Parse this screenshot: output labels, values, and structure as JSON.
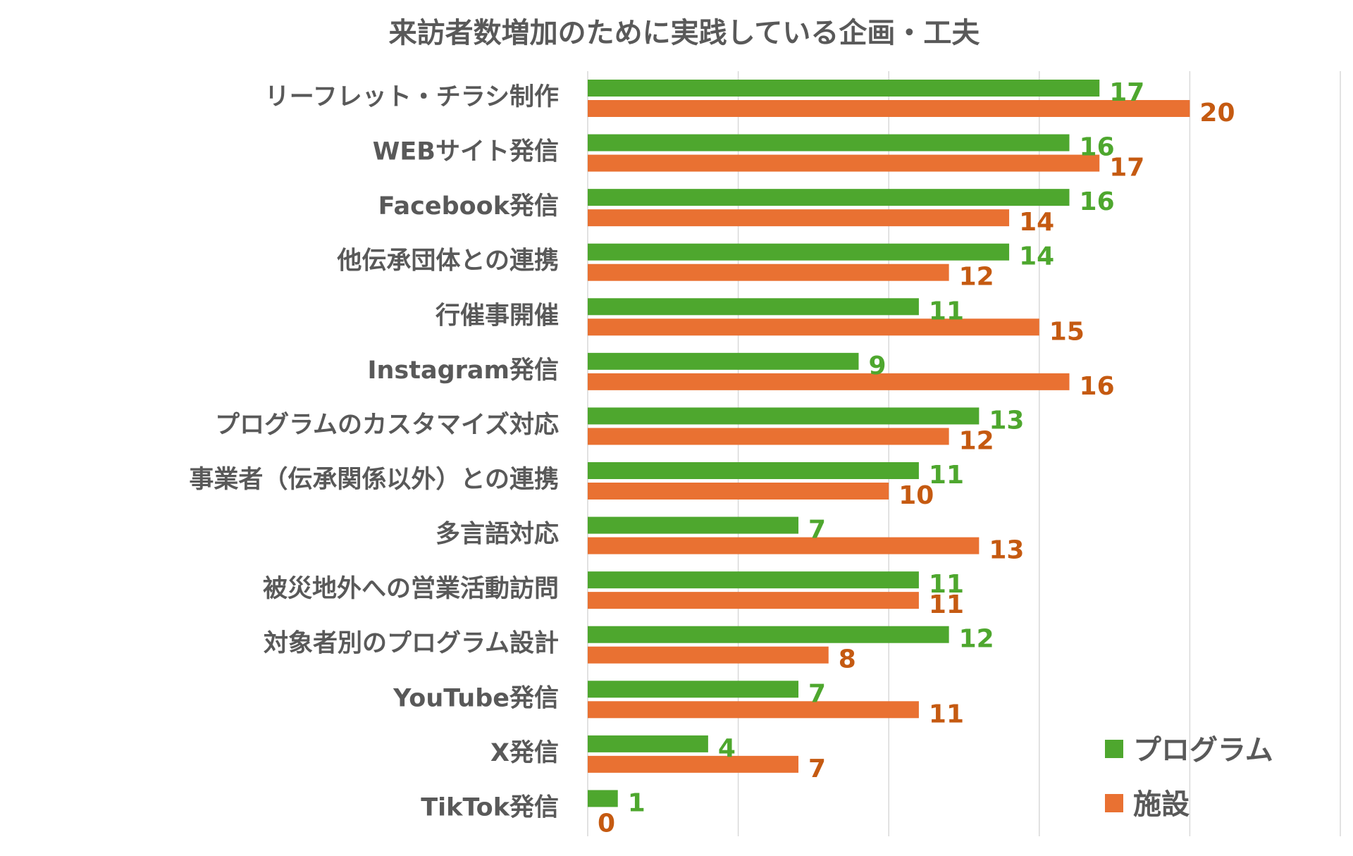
{
  "chart_data": {
    "type": "bar",
    "orientation": "horizontal",
    "title": "来訪者数増加のために実践している企画・工夫",
    "categories": [
      "リーフレット・チラシ制作",
      "WEBサイト発信",
      "Facebook発信",
      "他伝承団体との連携",
      "行催事開催",
      "Instagram発信",
      "プログラムのカスタマイズ対応",
      "事業者（伝承関係以外）との連携",
      "多言語対応",
      "被災地外への営業活動訪問",
      "対象者別のプログラム設計",
      "YouTube発信",
      "X発信",
      "TikTok発信"
    ],
    "series": [
      {
        "name": "プログラム",
        "color": "#4EA72E",
        "label_color": "#4EA72E",
        "values": [
          17,
          16,
          16,
          14,
          11,
          9,
          13,
          11,
          7,
          11,
          12,
          7,
          4,
          1
        ]
      },
      {
        "name": "施設",
        "color": "#E97132",
        "label_color": "#C55A11",
        "values": [
          20,
          17,
          14,
          12,
          15,
          16,
          12,
          10,
          13,
          11,
          8,
          11,
          7,
          0
        ]
      }
    ],
    "xlim": [
      0,
      25
    ],
    "grid": "vertical lines every 5",
    "x_tick_labels_shown": false,
    "data_labels": true,
    "legend": "bottom-right"
  }
}
